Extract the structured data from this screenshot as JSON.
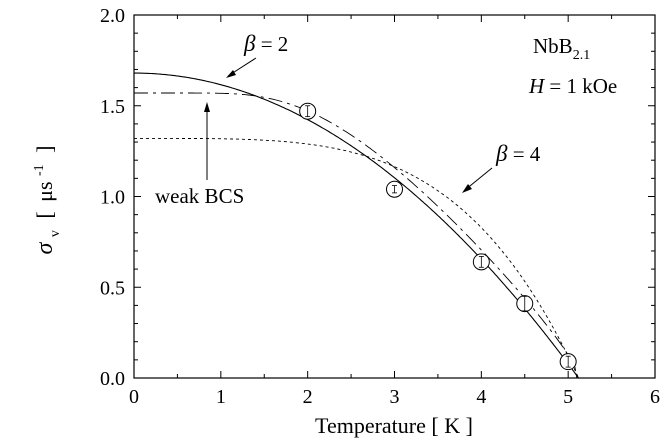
{
  "chart_data": {
    "type": "scatter",
    "xlabel": "Temperature [ K ]",
    "ylabel": {
      "symbol": "σ",
      "subscript": "v",
      "open_bracket": "[",
      "unit": "μs",
      "exponent": "-1",
      "close_bracket": "]"
    },
    "xlim": [
      0,
      6
    ],
    "ylim": [
      0,
      2.0
    ],
    "x_ticks": [
      "0",
      "1",
      "2",
      "3",
      "4",
      "5",
      "6"
    ],
    "y_ticks": [
      "0.0",
      "0.5",
      "1.0",
      "1.5",
      "2.0"
    ],
    "grid": false,
    "points": [
      {
        "x": 2.0,
        "y": 1.47,
        "err": 0.03
      },
      {
        "x": 3.0,
        "y": 1.04,
        "err": 0.02
      },
      {
        "x": 4.0,
        "y": 0.64,
        "err": 0.03
      },
      {
        "x": 4.5,
        "y": 0.41,
        "err": 0.04
      },
      {
        "x": 5.0,
        "y": 0.09,
        "err": 0.03
      }
    ],
    "curves": [
      {
        "label": "β = 2",
        "style": "solid",
        "sigma0": 1.68,
        "beta": 2,
        "tc": 5.12
      },
      {
        "label": "weak BCS",
        "style": "long-dash",
        "sigma0": 1.57,
        "tc": 5.1
      },
      {
        "label": "β = 4",
        "style": "short-dash",
        "sigma0": 1.32,
        "beta": 4,
        "tc": 5.12
      }
    ],
    "annotations": {
      "beta2": {
        "symbol": "β",
        "text": " = 2"
      },
      "beta4": {
        "symbol": "β",
        "text": " = 4"
      },
      "weak_bcs": "weak BCS",
      "sample": {
        "base": "NbB",
        "subscript": "2.1"
      },
      "field": {
        "symbol": "H",
        "text": " = 1 kOe"
      }
    }
  }
}
